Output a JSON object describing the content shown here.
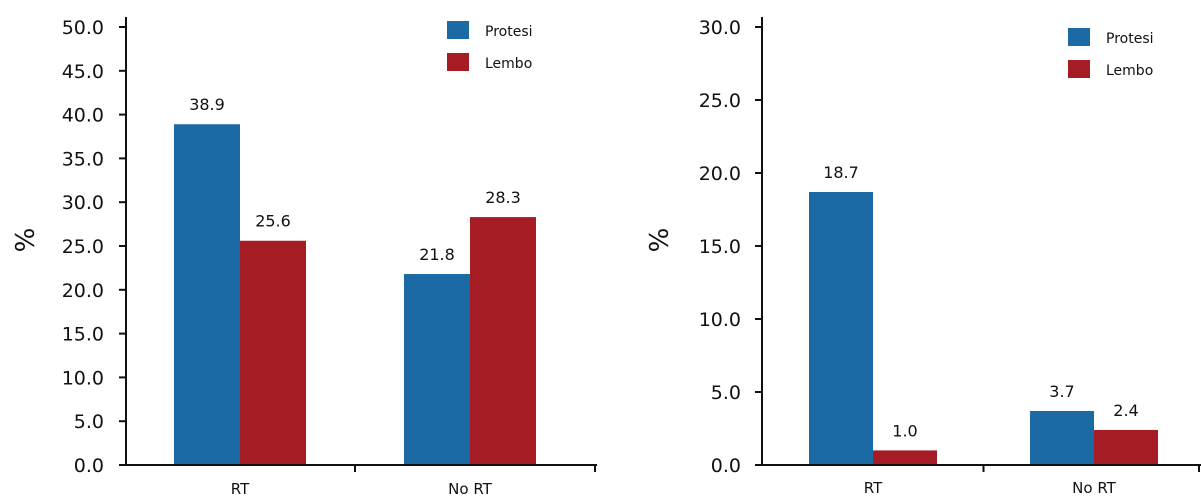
{
  "colors": {
    "protesi": "#1b6aa3",
    "lembo": "#a51c24",
    "axis": "#111111"
  },
  "chart_data": [
    {
      "type": "bar",
      "categories": [
        "RT",
        "No RT"
      ],
      "series": [
        {
          "name": "Protesi",
          "values": [
            38.9,
            21.8
          ]
        },
        {
          "name": "Lembo",
          "values": [
            25.6,
            28.3
          ]
        }
      ],
      "value_labels": [
        [
          "38.9",
          "21.8"
        ],
        [
          "25.6",
          "28.3"
        ]
      ],
      "ylabel": "%",
      "ylim": [
        0,
        50
      ],
      "yticks": [
        "0.0",
        "5.0",
        "10.0",
        "15.0",
        "20.0",
        "25.0",
        "30.0",
        "35.0",
        "40.0",
        "45.0",
        "50.0"
      ],
      "ytick_values": [
        0,
        5,
        10,
        15,
        20,
        25,
        30,
        35,
        40,
        45,
        50
      ],
      "legend": [
        "Protesi",
        "Lembo"
      ],
      "legend_position": "top-right",
      "grid": false
    },
    {
      "type": "bar",
      "categories": [
        "RT",
        "No RT"
      ],
      "series": [
        {
          "name": "Protesi",
          "values": [
            18.7,
            3.7
          ]
        },
        {
          "name": "Lembo",
          "values": [
            1.0,
            2.4
          ]
        }
      ],
      "value_labels": [
        [
          "18.7",
          "3.7"
        ],
        [
          "1.0",
          "2.4"
        ]
      ],
      "ylabel": "%",
      "ylim": [
        0,
        30
      ],
      "yticks": [
        "0.0",
        "5.0",
        "10.0",
        "15.0",
        "20.0",
        "25.0",
        "30.0"
      ],
      "ytick_values": [
        0,
        5,
        10,
        15,
        20,
        25,
        30
      ],
      "legend": [
        "Protesi",
        "Lembo"
      ],
      "legend_position": "top-right",
      "grid": false
    }
  ]
}
